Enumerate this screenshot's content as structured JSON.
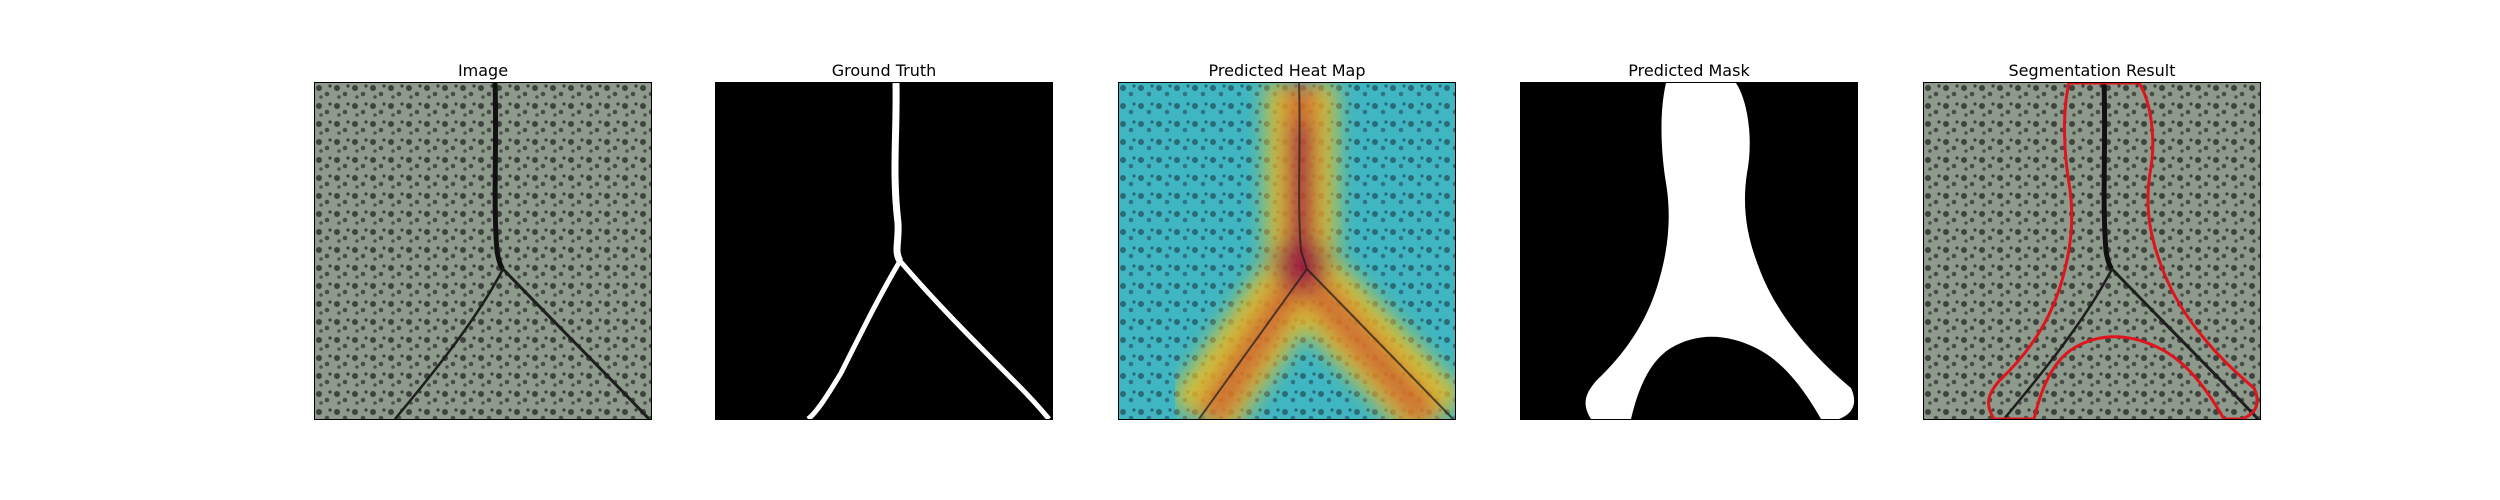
{
  "panels": [
    {
      "title": "Image"
    },
    {
      "title": "Ground Truth"
    },
    {
      "title": "Predicted Heat Map"
    },
    {
      "title": "Predicted Mask"
    },
    {
      "title": "Segmentation Result"
    }
  ],
  "colors": {
    "background": "#ffffff",
    "texture_base": "#8e9a8c",
    "speckle": "#3e433e",
    "crack": "#1a1a1a",
    "mask_fg": "#ffffff",
    "mask_bg": "#000000",
    "contour": "#e0141c",
    "heat_hot": "#c0102a",
    "heat_warm": "#f2c21b",
    "heat_cool": "#37b8c8"
  }
}
